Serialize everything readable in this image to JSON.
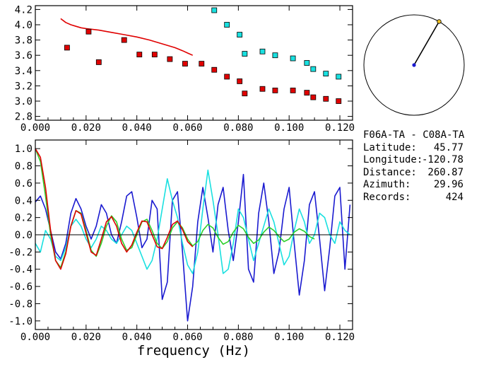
{
  "station_pair": "F06A-TA - C08A-TA",
  "info": [
    {
      "label": "Latitude:",
      "value": "45.77"
    },
    {
      "label": "Longitude:",
      "value": "-120.78"
    },
    {
      "label": "Distance:",
      "value": "260.87"
    },
    {
      "label": "Azimuth:",
      "value": "29.96"
    },
    {
      "label": "Records:",
      "value": "424"
    }
  ],
  "colors": {
    "red": "#e00000",
    "cyan": "#19e0e0",
    "blue": "#1a1ad0",
    "green": "#2ad02a",
    "black": "#000000"
  },
  "chart_data": [
    {
      "type": "scatter",
      "title": "",
      "xlabel": "",
      "ylabel": "",
      "xlim": [
        0.0,
        0.125
      ],
      "ylim": [
        2.75,
        4.25
      ],
      "xticks": [
        "0.000",
        "0.020",
        "0.040",
        "0.060",
        "0.080",
        "0.100",
        "0.120"
      ],
      "yticks": [
        "2.8",
        "3.0",
        "3.2",
        "3.4",
        "3.6",
        "3.8",
        "4.0",
        "4.2"
      ],
      "series": [
        {
          "kind": "line",
          "color": "red",
          "x": [
            0.01,
            0.012,
            0.014,
            0.016,
            0.018,
            0.02,
            0.025,
            0.03,
            0.035,
            0.04,
            0.045,
            0.05,
            0.055,
            0.058,
            0.06,
            0.062
          ],
          "y": [
            4.08,
            4.03,
            4.0,
            3.98,
            3.96,
            3.95,
            3.93,
            3.9,
            3.87,
            3.84,
            3.8,
            3.75,
            3.7,
            3.66,
            3.63,
            3.6
          ]
        },
        {
          "kind": "markers",
          "color": "red",
          "x": [
            0.0125,
            0.021,
            0.025,
            0.035,
            0.041,
            0.047,
            0.053,
            0.059,
            0.0655,
            0.0705,
            0.0755,
            0.0805,
            0.0825,
            0.0895,
            0.0945,
            0.1015,
            0.107,
            0.1095,
            0.1145,
            0.1195
          ],
          "y": [
            3.7,
            3.91,
            3.51,
            3.8,
            3.61,
            3.61,
            3.55,
            3.49,
            3.49,
            3.41,
            3.32,
            3.26,
            3.1,
            3.16,
            3.14,
            3.14,
            3.11,
            3.05,
            3.03,
            3.0
          ]
        },
        {
          "kind": "markers",
          "color": "cyan",
          "x": [
            0.0705,
            0.0755,
            0.0805,
            0.0825,
            0.0895,
            0.0945,
            0.1015,
            0.107,
            0.1095,
            0.1145,
            0.1195
          ],
          "y": [
            4.19,
            4.0,
            3.87,
            3.62,
            3.65,
            3.6,
            3.56,
            3.5,
            3.42,
            3.36,
            3.32
          ]
        }
      ]
    },
    {
      "type": "line",
      "title": "",
      "xlabel": "frequency (Hz)",
      "ylabel": "",
      "xlim": [
        0.0,
        0.125
      ],
      "ylim": [
        -1.1,
        1.1
      ],
      "xticks": [
        "0.000",
        "0.020",
        "0.040",
        "0.060",
        "0.080",
        "0.100",
        "0.120"
      ],
      "yticks": [
        "1.0",
        "0.8",
        "0.6",
        "0.4",
        "0.2",
        "0.0",
        "-0.2",
        "-0.4",
        "-0.6",
        "-0.8",
        "-1.0"
      ],
      "series": [
        {
          "color": "blue",
          "x": [
            0.0,
            0.002,
            0.004,
            0.006,
            0.008,
            0.01,
            0.012,
            0.014,
            0.016,
            0.018,
            0.02,
            0.022,
            0.024,
            0.026,
            0.028,
            0.03,
            0.032,
            0.034,
            0.036,
            0.038,
            0.04,
            0.042,
            0.044,
            0.046,
            0.048,
            0.05,
            0.052,
            0.054,
            0.056,
            0.058,
            0.06,
            0.062,
            0.064,
            0.066,
            0.068,
            0.07,
            0.072,
            0.074,
            0.076,
            0.078,
            0.08,
            0.082,
            0.084,
            0.086,
            0.088,
            0.09,
            0.092,
            0.094,
            0.096,
            0.098,
            0.1,
            0.102,
            0.104,
            0.106,
            0.108,
            0.11,
            0.112,
            0.114,
            0.116,
            0.118,
            0.12,
            0.122,
            0.124
          ],
          "y": [
            0.38,
            0.45,
            0.3,
            0.05,
            -0.2,
            -0.28,
            -0.1,
            0.25,
            0.42,
            0.3,
            0.1,
            -0.05,
            0.1,
            0.35,
            0.25,
            0.0,
            -0.1,
            0.15,
            0.45,
            0.5,
            0.2,
            -0.15,
            -0.05,
            0.4,
            0.3,
            -0.75,
            -0.55,
            0.4,
            0.5,
            -0.2,
            -1.0,
            -0.6,
            0.15,
            0.55,
            0.2,
            -0.2,
            0.35,
            0.55,
            0.05,
            -0.3,
            0.15,
            0.7,
            -0.4,
            -0.55,
            0.25,
            0.6,
            0.15,
            -0.45,
            -0.2,
            0.3,
            0.55,
            -0.1,
            -0.7,
            -0.3,
            0.35,
            0.5,
            -0.05,
            -0.65,
            -0.15,
            0.45,
            0.55,
            -0.4,
            0.35
          ]
        },
        {
          "color": "cyan",
          "x": [
            0.0,
            0.002,
            0.004,
            0.006,
            0.008,
            0.01,
            0.012,
            0.014,
            0.016,
            0.018,
            0.02,
            0.022,
            0.024,
            0.026,
            0.028,
            0.03,
            0.032,
            0.034,
            0.036,
            0.038,
            0.04,
            0.042,
            0.044,
            0.046,
            0.048,
            0.05,
            0.052,
            0.054,
            0.056,
            0.058,
            0.06,
            0.062,
            0.064,
            0.066,
            0.068,
            0.07,
            0.072,
            0.074,
            0.076,
            0.078,
            0.08,
            0.082,
            0.084,
            0.086,
            0.088,
            0.09,
            0.092,
            0.094,
            0.096,
            0.098,
            0.1,
            0.102,
            0.104,
            0.106,
            0.108,
            0.11,
            0.112,
            0.114,
            0.116,
            0.118,
            0.12,
            0.122,
            0.124
          ],
          "y": [
            -0.1,
            -0.2,
            0.05,
            -0.05,
            -0.25,
            -0.3,
            -0.15,
            0.1,
            0.18,
            0.1,
            -0.05,
            -0.15,
            -0.05,
            0.1,
            0.05,
            -0.05,
            -0.1,
            0.0,
            0.1,
            0.05,
            -0.1,
            -0.25,
            -0.4,
            -0.3,
            -0.05,
            0.3,
            0.65,
            0.4,
            0.2,
            -0.1,
            -0.35,
            -0.45,
            -0.2,
            0.3,
            0.75,
            0.4,
            0.0,
            -0.45,
            -0.4,
            -0.1,
            0.3,
            0.2,
            -0.05,
            -0.3,
            -0.1,
            0.1,
            0.3,
            0.15,
            -0.1,
            -0.35,
            -0.25,
            0.05,
            0.3,
            0.15,
            -0.1,
            0.0,
            0.25,
            0.2,
            0.0,
            -0.1,
            0.15,
            0.05,
            0.0
          ]
        },
        {
          "color": "green",
          "x": [
            0.0,
            0.002,
            0.004,
            0.006,
            0.008,
            0.01,
            0.012,
            0.014,
            0.016,
            0.018,
            0.02,
            0.022,
            0.024,
            0.026,
            0.028,
            0.03,
            0.032,
            0.034,
            0.036,
            0.038,
            0.04,
            0.042,
            0.044,
            0.046,
            0.048,
            0.05,
            0.052,
            0.054,
            0.056,
            0.058,
            0.06,
            0.062,
            0.064,
            0.066,
            0.068,
            0.07,
            0.072,
            0.074,
            0.076,
            0.078,
            0.08,
            0.082,
            0.084,
            0.086,
            0.088,
            0.09,
            0.092,
            0.094,
            0.096,
            0.098,
            0.1,
            0.102,
            0.104,
            0.106,
            0.108,
            0.11
          ],
          "y": [
            1.0,
            0.85,
            0.45,
            0.0,
            -0.3,
            -0.38,
            -0.2,
            0.1,
            0.28,
            0.25,
            0.05,
            -0.18,
            -0.25,
            -0.1,
            0.1,
            0.22,
            0.15,
            -0.05,
            -0.18,
            -0.15,
            0.0,
            0.15,
            0.18,
            0.05,
            -0.1,
            -0.16,
            -0.08,
            0.08,
            0.15,
            0.08,
            -0.05,
            -0.13,
            -0.08,
            0.05,
            0.12,
            0.08,
            -0.03,
            -0.11,
            -0.08,
            0.03,
            0.11,
            0.07,
            -0.03,
            -0.1,
            -0.06,
            0.03,
            0.09,
            0.05,
            -0.02,
            -0.08,
            -0.05,
            0.03,
            0.07,
            0.04,
            -0.02,
            -0.05
          ]
        },
        {
          "color": "red",
          "x": [
            0.0,
            0.002,
            0.004,
            0.006,
            0.008,
            0.01,
            0.012,
            0.014,
            0.016,
            0.018,
            0.02,
            0.022,
            0.024,
            0.026,
            0.028,
            0.03,
            0.032,
            0.034,
            0.036,
            0.038,
            0.04,
            0.042,
            0.044,
            0.046,
            0.048,
            0.05,
            0.052,
            0.054,
            0.056,
            0.058,
            0.06,
            0.062
          ],
          "y": [
            1.0,
            0.9,
            0.55,
            0.05,
            -0.3,
            -0.4,
            -0.22,
            0.1,
            0.28,
            0.24,
            0.02,
            -0.2,
            -0.24,
            -0.05,
            0.15,
            0.21,
            0.1,
            -0.1,
            -0.2,
            -0.12,
            0.03,
            0.16,
            0.15,
            0.0,
            -0.14,
            -0.16,
            -0.03,
            0.12,
            0.16,
            0.06,
            -0.08,
            -0.14
          ]
        },
        {
          "color": "black",
          "x": [
            0.0,
            0.125
          ],
          "y": [
            0.0,
            0.0
          ]
        }
      ]
    },
    {
      "type": "polar",
      "title": "",
      "azimuth_deg": 29.96
    }
  ]
}
